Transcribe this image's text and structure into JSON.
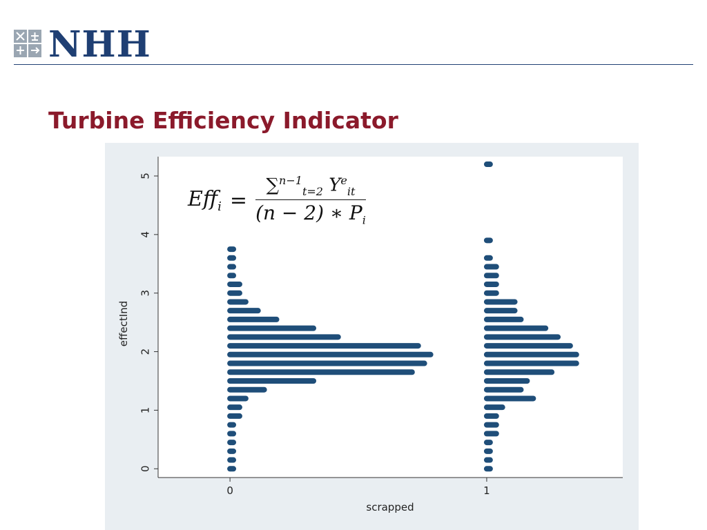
{
  "header": {
    "logo_text": "NHH",
    "logo_icon": "nhh-crest-icon",
    "title": "Turbine Efficiency Indicator"
  },
  "colors": {
    "logo": "#1f3f73",
    "title": "#8b1a2b",
    "bars": "#1f4e79",
    "chart_bg": "#e9eef2"
  },
  "formula": {
    "lhs_base": "Eff",
    "lhs_sub": "i",
    "equals": "=",
    "num_sum": "∑",
    "num_sum_sup": "n−1",
    "num_sum_sub": "t=2",
    "num_var": "Y",
    "num_var_sup": "e",
    "num_var_sub": "it",
    "den_text": "(n − 2) ∗ P",
    "den_sub": "i"
  },
  "chart_data": {
    "type": "scatter",
    "title": "",
    "xlabel": "scrapped",
    "ylabel": "effectInd",
    "x_ticks": [
      0,
      1
    ],
    "y_ticks": [
      0,
      1,
      2,
      3,
      4,
      5
    ],
    "xlim": [
      -0.28,
      1.53
    ],
    "ylim": [
      -0.15,
      5.33
    ],
    "grid": false,
    "bin_width": 0.1,
    "series": [
      {
        "x": 0,
        "bins": [
          {
            "y": 0.0,
            "count": 1
          },
          {
            "y": 0.15,
            "count": 1
          },
          {
            "y": 0.3,
            "count": 1
          },
          {
            "y": 0.45,
            "count": 1
          },
          {
            "y": 0.6,
            "count": 1
          },
          {
            "y": 0.75,
            "count": 1
          },
          {
            "y": 0.9,
            "count": 2
          },
          {
            "y": 1.05,
            "count": 2
          },
          {
            "y": 1.2,
            "count": 3
          },
          {
            "y": 1.35,
            "count": 6
          },
          {
            "y": 1.5,
            "count": 14
          },
          {
            "y": 1.65,
            "count": 30
          },
          {
            "y": 1.8,
            "count": 32
          },
          {
            "y": 1.95,
            "count": 33
          },
          {
            "y": 2.1,
            "count": 31
          },
          {
            "y": 2.25,
            "count": 18
          },
          {
            "y": 2.4,
            "count": 14
          },
          {
            "y": 2.55,
            "count": 8
          },
          {
            "y": 2.7,
            "count": 5
          },
          {
            "y": 2.85,
            "count": 3
          },
          {
            "y": 3.0,
            "count": 2
          },
          {
            "y": 3.15,
            "count": 2
          },
          {
            "y": 3.3,
            "count": 1
          },
          {
            "y": 3.45,
            "count": 1
          },
          {
            "y": 3.6,
            "count": 1
          },
          {
            "y": 3.75,
            "count": 1
          }
        ]
      },
      {
        "x": 1,
        "bins": [
          {
            "y": 0.0,
            "count": 1
          },
          {
            "y": 0.15,
            "count": 1
          },
          {
            "y": 0.3,
            "count": 1
          },
          {
            "y": 0.45,
            "count": 1
          },
          {
            "y": 0.6,
            "count": 2
          },
          {
            "y": 0.75,
            "count": 2
          },
          {
            "y": 0.9,
            "count": 2
          },
          {
            "y": 1.05,
            "count": 3
          },
          {
            "y": 1.2,
            "count": 8
          },
          {
            "y": 1.35,
            "count": 6
          },
          {
            "y": 1.5,
            "count": 7
          },
          {
            "y": 1.65,
            "count": 11
          },
          {
            "y": 1.8,
            "count": 15
          },
          {
            "y": 1.95,
            "count": 15
          },
          {
            "y": 2.1,
            "count": 14
          },
          {
            "y": 2.25,
            "count": 12
          },
          {
            "y": 2.4,
            "count": 10
          },
          {
            "y": 2.55,
            "count": 6
          },
          {
            "y": 2.7,
            "count": 5
          },
          {
            "y": 2.85,
            "count": 5
          },
          {
            "y": 3.0,
            "count": 2
          },
          {
            "y": 3.15,
            "count": 2
          },
          {
            "y": 3.3,
            "count": 2
          },
          {
            "y": 3.45,
            "count": 2
          },
          {
            "y": 3.6,
            "count": 1
          },
          {
            "y": 3.9,
            "count": 1
          },
          {
            "y": 5.2,
            "count": 1
          }
        ]
      }
    ]
  }
}
